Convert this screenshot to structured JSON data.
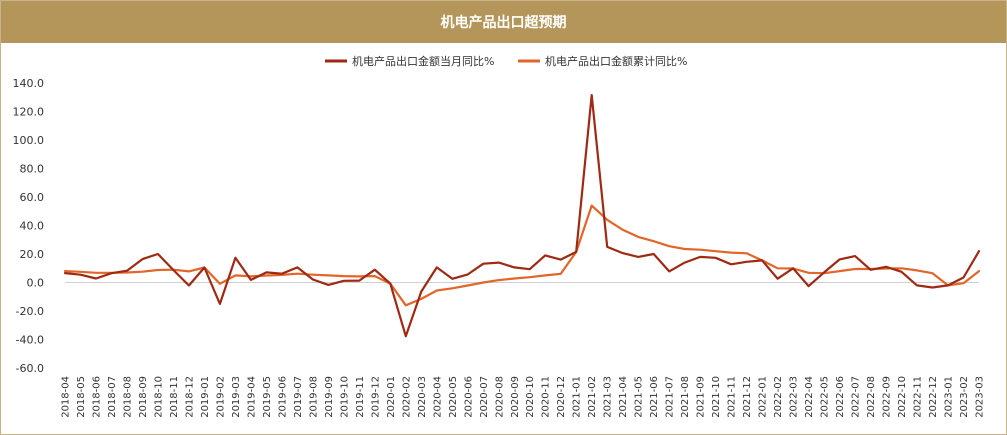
{
  "chart_data": {
    "type": "line",
    "title": "机电产品出口超预期",
    "xlabel": "",
    "ylabel": "",
    "ylim": [
      -60,
      140
    ],
    "yticks": [
      -60,
      -40,
      -20,
      0,
      20,
      40,
      60,
      80,
      100,
      120,
      140
    ],
    "ytick_labels": [
      "-60.0",
      "-40.0",
      "-20.0",
      "0.0",
      "20.0",
      "40.0",
      "60.0",
      "80.0",
      "100.0",
      "120.0",
      "140.0"
    ],
    "grid": false,
    "legend_position": "top",
    "x": [
      "2018-04",
      "2018-05",
      "2018-06",
      "2018-07",
      "2018-08",
      "2018-09",
      "2018-10",
      "2018-11",
      "2018-12",
      "2019-01",
      "2019-02",
      "2019-03",
      "2019-04",
      "2019-05",
      "2019-06",
      "2019-07",
      "2019-08",
      "2019-09",
      "2019-10",
      "2019-11",
      "2019-12",
      "2020-01",
      "2020-02",
      "2020-03",
      "2020-04",
      "2020-05",
      "2020-06",
      "2020-07",
      "2020-08",
      "2020-09",
      "2020-10",
      "2020-11",
      "2020-12",
      "2021-01",
      "2021-02",
      "2021-03",
      "2021-04",
      "2021-05",
      "2021-06",
      "2021-07",
      "2021-08",
      "2021-09",
      "2021-10",
      "2021-11",
      "2021-12",
      "2022-01",
      "2022-02",
      "2022-03",
      "2022-04",
      "2022-05",
      "2022-06",
      "2022-07",
      "2022-08",
      "2022-09",
      "2022-10",
      "2022-11",
      "2022-12",
      "2023-01",
      "2023-02",
      "2023-03"
    ],
    "series": [
      {
        "name": "机电产品出口金额当月同比%",
        "color": "#9e2a14",
        "values": [
          6.6,
          5.5,
          2.8,
          6.5,
          8.3,
          16.4,
          20.0,
          8.8,
          -2.1,
          10.5,
          -15.0,
          17.3,
          1.8,
          7.1,
          6.2,
          10.6,
          2.1,
          -1.7,
          1.2,
          1.3,
          9.0,
          -0.8,
          -37.7,
          -6.3,
          10.6,
          2.6,
          5.7,
          13.2,
          14.0,
          10.6,
          9.3,
          19.0,
          16.1,
          21.5,
          131.5,
          25.0,
          20.6,
          18.0,
          20.0,
          7.8,
          14.0,
          18.0,
          17.3,
          12.8,
          14.5,
          15.5,
          2.7,
          10.0,
          -2.5,
          7.1,
          16.2,
          18.5,
          8.9,
          11.0,
          7.5,
          -2.0,
          -3.5,
          -2.0,
          3.5,
          22.0
        ]
      },
      {
        "name": "机电产品出口金额累计同比%",
        "color": "#e2662a",
        "values": [
          8.0,
          7.5,
          6.8,
          6.8,
          7.0,
          7.6,
          8.8,
          9.0,
          7.8,
          10.5,
          -0.9,
          5.0,
          4.3,
          4.9,
          5.3,
          6.2,
          5.5,
          5.0,
          4.5,
          4.3,
          4.5,
          -0.8,
          -16.0,
          -11.5,
          -5.6,
          -4.1,
          -2.1,
          0.0,
          1.7,
          2.8,
          3.7,
          5.0,
          6.0,
          21.5,
          54.0,
          44.0,
          37.0,
          32.0,
          29.0,
          25.5,
          23.5,
          23.0,
          22.0,
          21.0,
          20.5,
          15.5,
          10.0,
          9.8,
          6.8,
          6.5,
          8.0,
          9.5,
          9.5,
          9.8,
          10.0,
          8.5,
          6.5,
          -2.0,
          -0.5,
          8.0
        ]
      }
    ]
  }
}
